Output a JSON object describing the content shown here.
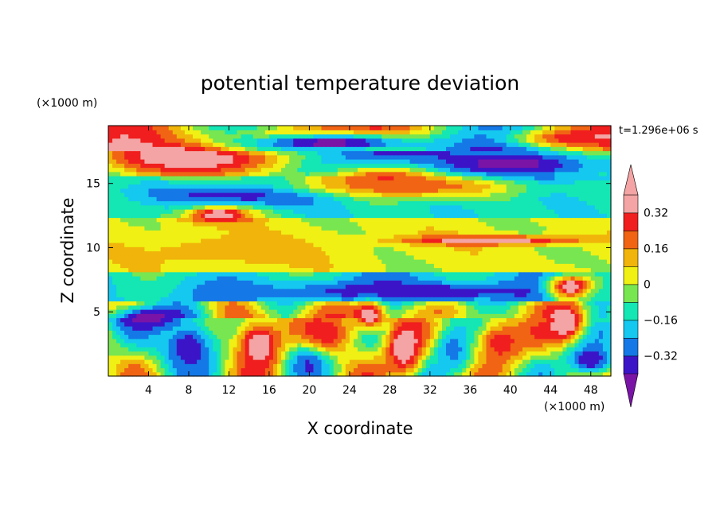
{
  "chart_data": {
    "type": "heatmap",
    "title": "potential temperature deviation",
    "xlabel": "X coordinate",
    "ylabel": "Z coordinate",
    "x_unit": "(×1000 m)",
    "y_unit": "(×1000 m)",
    "time_label": "t=1.296e+06 s",
    "xlim": [
      0,
      50
    ],
    "ylim": [
      0,
      19.5
    ],
    "x_ticks": [
      4,
      8,
      12,
      16,
      20,
      24,
      28,
      32,
      36,
      40,
      44,
      48
    ],
    "y_ticks": [
      5,
      10,
      15
    ],
    "colorbar": {
      "levels": [
        -0.4,
        -0.32,
        -0.24,
        -0.16,
        -0.08,
        0,
        0.08,
        0.16,
        0.24,
        0.32,
        0.4
      ],
      "labeled_levels": [
        0.32,
        0.16,
        0,
        -0.16,
        -0.32
      ],
      "labels": [
        "0.32",
        "0.16",
        "0",
        "−0.16",
        "−0.32"
      ],
      "colors": [
        "#7a14a6",
        "#3c14c8",
        "#1478e6",
        "#14c8f0",
        "#14e6b4",
        "#78e650",
        "#f0f014",
        "#f0b40a",
        "#f06414",
        "#f01e1e",
        "#f4a4a4"
      ],
      "extend": "both"
    },
    "field_blobs": [
      {
        "x": 8,
        "z": 17.2,
        "rx": 9,
        "rz": 1.4,
        "v": 0.45
      },
      {
        "x": 20,
        "z": 18.5,
        "rx": 7,
        "rz": 1.0,
        "v": 0.45
      },
      {
        "x": 29,
        "z": 15.4,
        "rx": 7,
        "rz": 1.2,
        "v": 0.45
      },
      {
        "x": 46,
        "z": 18.3,
        "rx": 6,
        "rz": 1.0,
        "v": 0.45
      },
      {
        "x": 22,
        "z": 18.2,
        "rx": 10,
        "rz": 0.8,
        "v": -0.45
      },
      {
        "x": 40,
        "z": 16.5,
        "rx": 10,
        "rz": 1.6,
        "v": -0.45
      },
      {
        "x": 14,
        "z": 14.2,
        "rx": 10,
        "rz": 0.9,
        "v": -0.4
      },
      {
        "x": 11,
        "z": 12.6,
        "rx": 3.5,
        "rz": 0.6,
        "v": 0.42
      },
      {
        "x": 38,
        "z": 10.6,
        "rx": 9,
        "rz": 0.35,
        "v": 0.4
      },
      {
        "x": 30,
        "z": 14.8,
        "rx": 12,
        "rz": 0.8,
        "v": 0.2
      },
      {
        "x": 30,
        "z": 6.6,
        "rx": 16,
        "rz": 0.8,
        "v": -0.4
      },
      {
        "x": 4,
        "z": 4.6,
        "rx": 4,
        "rz": 1.0,
        "v": -0.45
      },
      {
        "x": 8,
        "z": 2.3,
        "rx": 3,
        "rz": 2.2,
        "v": -0.4
      },
      {
        "x": 15,
        "z": 2.5,
        "rx": 2.3,
        "rz": 1.9,
        "v": 0.45
      },
      {
        "x": 20,
        "z": 1.6,
        "rx": 2,
        "rz": 1.6,
        "v": -0.42
      },
      {
        "x": 21.5,
        "z": 3.4,
        "rx": 3.2,
        "rz": 1.6,
        "v": 0.3
      },
      {
        "x": 29.5,
        "z": 2.2,
        "rx": 1.8,
        "rz": 2.1,
        "v": 0.44
      },
      {
        "x": 34.5,
        "z": 2.2,
        "rx": 2.2,
        "rz": 2.0,
        "v": -0.3
      },
      {
        "x": 39,
        "z": 2.6,
        "rx": 2.5,
        "rz": 1.8,
        "v": 0.3
      },
      {
        "x": 45.5,
        "z": 4.2,
        "rx": 1.8,
        "rz": 1.5,
        "v": 0.45
      },
      {
        "x": 48,
        "z": 1.3,
        "rx": 2.5,
        "rz": 1.3,
        "v": -0.4
      },
      {
        "x": 26,
        "z": 4.8,
        "rx": 1.5,
        "rz": 1.0,
        "v": 0.42
      },
      {
        "x": 46,
        "z": 7,
        "rx": 2.2,
        "rz": 0.9,
        "v": 0.42
      },
      {
        "x": 12,
        "z": 9.8,
        "rx": 10,
        "rz": 1.4,
        "v": 0.12
      }
    ]
  }
}
